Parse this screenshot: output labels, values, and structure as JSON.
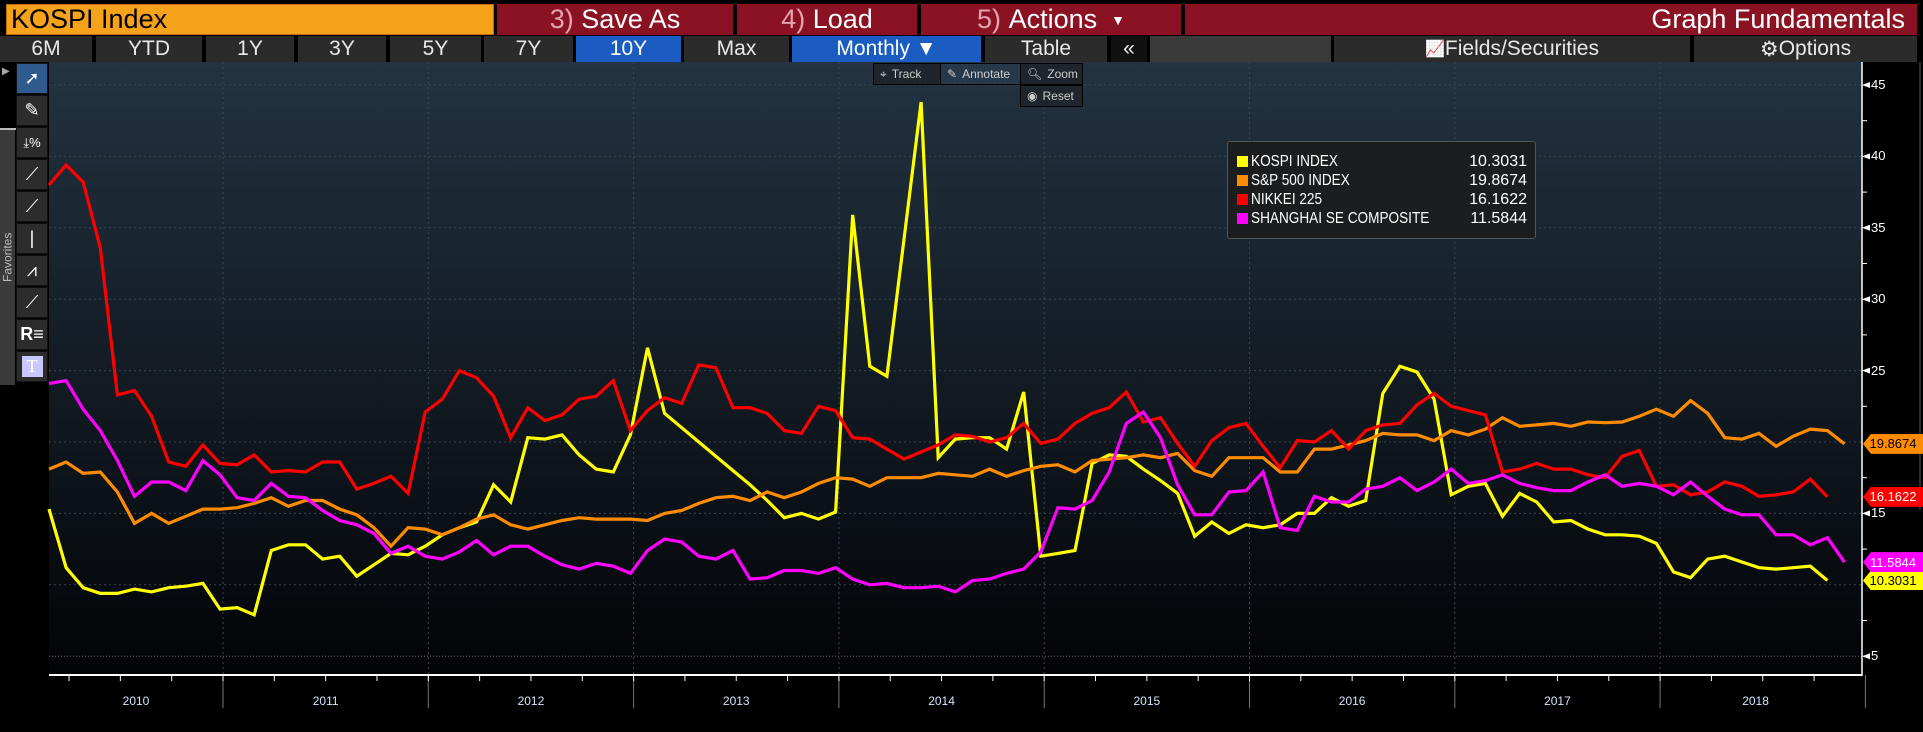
{
  "header": {
    "title": "KOSPI Index",
    "save_num": "3)",
    "save": "Save As",
    "load_num": "4)",
    "load": "Load",
    "actions_num": "5)",
    "actions": "Actions",
    "actions_caret": "▼",
    "right_title": "Graph Fundamentals"
  },
  "toolbar": {
    "periods": [
      "6M",
      "YTD",
      "1Y",
      "3Y",
      "5Y",
      "7Y",
      "10Y",
      "Max"
    ],
    "active_period": "10Y",
    "frequency": "Monthly ▼",
    "table": "Table",
    "collapse": "«",
    "fields": "Fields/Securities",
    "options": "Options"
  },
  "chart_tools": {
    "track": "Track",
    "annotate": "Annotate",
    "zoom": "Zoom",
    "reset": "Reset"
  },
  "side": {
    "favorites": "Favorites"
  },
  "chart_data": {
    "type": "line",
    "title": "KOSPI Index",
    "ylim": [
      5,
      45
    ],
    "y_tick_labels": [
      "45",
      "40",
      "35",
      "30",
      "25",
      "15",
      "5"
    ],
    "y_ticks": [
      45,
      40,
      35,
      30,
      25,
      15,
      5
    ],
    "x_tick_labels": [
      "2010",
      "2011",
      "2012",
      "2013",
      "2014",
      "2015",
      "2016",
      "2017",
      "2018"
    ],
    "frequency": "Monthly",
    "series": [
      {
        "name": "KOSPI INDEX",
        "last": "10.3031",
        "color": "#ffff00",
        "values": [
          15.3,
          11.2,
          9.8,
          9.4,
          9.4,
          9.7,
          9.5,
          9.8,
          9.9,
          10.1,
          8.3,
          8.4,
          7.9,
          12.4,
          12.8,
          12.8,
          11.8,
          12.0,
          10.6,
          11.4,
          12.2,
          12.1,
          12.7,
          13.5,
          14.0,
          14.4,
          17.0,
          15.8,
          20.3,
          20.2,
          20.5,
          19.1,
          18.1,
          17.9,
          20.5,
          26.6,
          22.0,
          21.0,
          20.0,
          19.0,
          18.0,
          17.0,
          15.9,
          14.7,
          15.0,
          14.6,
          15.1,
          35.9,
          25.3,
          24.6,
          34.2,
          43.8,
          18.9,
          20.2,
          20.3,
          20.3,
          19.5,
          23.5,
          12.0,
          12.2,
          12.4,
          18.5,
          19.1,
          19.0,
          18.1,
          17.3,
          16.4,
          13.4,
          14.4,
          13.6,
          14.2,
          14.0,
          14.2,
          15.0,
          15.0,
          16.1,
          15.5,
          15.9,
          23.4,
          25.3,
          24.9,
          23.0,
          16.3,
          16.9,
          17.1,
          14.8,
          16.4,
          15.8,
          14.4,
          14.5,
          13.9,
          13.5,
          13.5,
          13.4,
          12.9,
          10.9,
          10.5,
          11.8,
          12.0,
          11.6,
          11.2,
          11.1,
          11.2,
          11.3,
          10.3031
        ]
      },
      {
        "name": "S&P 500 INDEX",
        "last": "19.8674",
        "color": "#ff8c00",
        "values": [
          18.1,
          18.6,
          17.8,
          17.9,
          16.5,
          14.3,
          15.0,
          14.3,
          14.8,
          15.3,
          15.3,
          15.4,
          15.7,
          16.1,
          15.5,
          15.9,
          15.9,
          15.3,
          14.9,
          14.0,
          12.7,
          14.0,
          13.9,
          13.5,
          14.0,
          14.6,
          14.9,
          14.2,
          13.9,
          14.2,
          14.5,
          14.7,
          14.6,
          14.6,
          14.6,
          14.5,
          15.0,
          15.2,
          15.7,
          16.1,
          16.2,
          15.9,
          16.5,
          16.1,
          16.5,
          17.1,
          17.5,
          17.4,
          16.9,
          17.5,
          17.5,
          17.5,
          17.8,
          17.7,
          17.6,
          18.1,
          17.6,
          18.0,
          18.3,
          18.4,
          17.9,
          18.7,
          18.8,
          18.9,
          19.1,
          18.9,
          19.2,
          18.0,
          17.6,
          18.9,
          18.9,
          18.9,
          17.9,
          17.9,
          19.5,
          19.5,
          19.8,
          20.1,
          20.6,
          20.5,
          20.5,
          20.1,
          20.8,
          20.5,
          20.9,
          21.7,
          21.1,
          21.2,
          21.3,
          21.1,
          21.4,
          21.35,
          21.4,
          21.8,
          22.3,
          21.8,
          22.9,
          22.0,
          20.3,
          20.2,
          20.6,
          19.7,
          20.4,
          20.9,
          20.8,
          19.8674
        ]
      },
      {
        "name": "NIKKEI 225",
        "last": "16.1622",
        "color": "#ff0000",
        "values": [
          38.0,
          39.4,
          38.2,
          33.6,
          23.3,
          23.6,
          21.8,
          18.6,
          18.3,
          19.8,
          18.5,
          18.4,
          19.1,
          17.9,
          18.0,
          17.9,
          18.6,
          18.6,
          16.7,
          17.1,
          17.6,
          16.4,
          22.1,
          23.0,
          25.0,
          24.5,
          23.2,
          20.3,
          22.4,
          21.5,
          21.9,
          23.0,
          23.2,
          24.3,
          20.8,
          22.2,
          23.1,
          22.7,
          25.4,
          25.2,
          22.4,
          22.4,
          22.0,
          20.8,
          20.6,
          22.5,
          22.2,
          20.3,
          20.2,
          19.5,
          18.8,
          19.3,
          19.8,
          20.5,
          20.4,
          20.0,
          20.3,
          21.3,
          19.9,
          20.2,
          21.3,
          22.0,
          22.4,
          23.5,
          21.4,
          21.7,
          19.9,
          18.3,
          20.1,
          21.0,
          21.3,
          19.7,
          18.2,
          20.1,
          20.0,
          20.8,
          19.5,
          20.8,
          21.2,
          21.3,
          22.6,
          23.4,
          22.5,
          22.2,
          21.9,
          17.9,
          18.1,
          18.5,
          18.1,
          18.1,
          17.7,
          17.5,
          19.0,
          19.4,
          16.9,
          17.0,
          16.3,
          16.5,
          17.2,
          16.9,
          16.2,
          16.3,
          16.5,
          17.4,
          16.1622
        ]
      },
      {
        "name": "SHANGHAI SE COMPOSITE",
        "last": "11.5844",
        "color": "#ff00ff",
        "values": [
          24.1,
          24.3,
          22.3,
          20.8,
          18.7,
          16.2,
          17.2,
          17.2,
          16.6,
          18.7,
          17.7,
          16.1,
          15.9,
          17.1,
          16.2,
          16.1,
          15.2,
          14.5,
          14.2,
          13.6,
          12.2,
          12.7,
          12.0,
          11.8,
          12.3,
          13.1,
          12.1,
          12.7,
          12.7,
          12.0,
          11.4,
          11.1,
          11.5,
          11.3,
          10.8,
          12.4,
          13.2,
          13.0,
          12.0,
          11.8,
          12.4,
          10.4,
          10.5,
          11.0,
          11.0,
          10.8,
          11.2,
          10.4,
          10.0,
          10.1,
          9.8,
          9.8,
          9.9,
          9.5,
          10.3,
          10.4,
          10.8,
          11.1,
          12.3,
          15.4,
          15.3,
          15.9,
          17.9,
          21.3,
          22.1,
          20.3,
          17.0,
          14.9,
          14.9,
          16.5,
          16.6,
          17.9,
          14.0,
          13.8,
          16.2,
          15.8,
          15.8,
          16.7,
          16.9,
          17.5,
          16.6,
          17.2,
          18.1,
          17.1,
          17.3,
          17.7,
          17.1,
          16.8,
          16.6,
          16.6,
          17.2,
          17.7,
          16.9,
          17.1,
          16.9,
          16.3,
          17.2,
          16.2,
          15.3,
          14.9,
          14.9,
          13.5,
          13.5,
          12.8,
          13.3,
          11.5844
        ]
      }
    ]
  }
}
